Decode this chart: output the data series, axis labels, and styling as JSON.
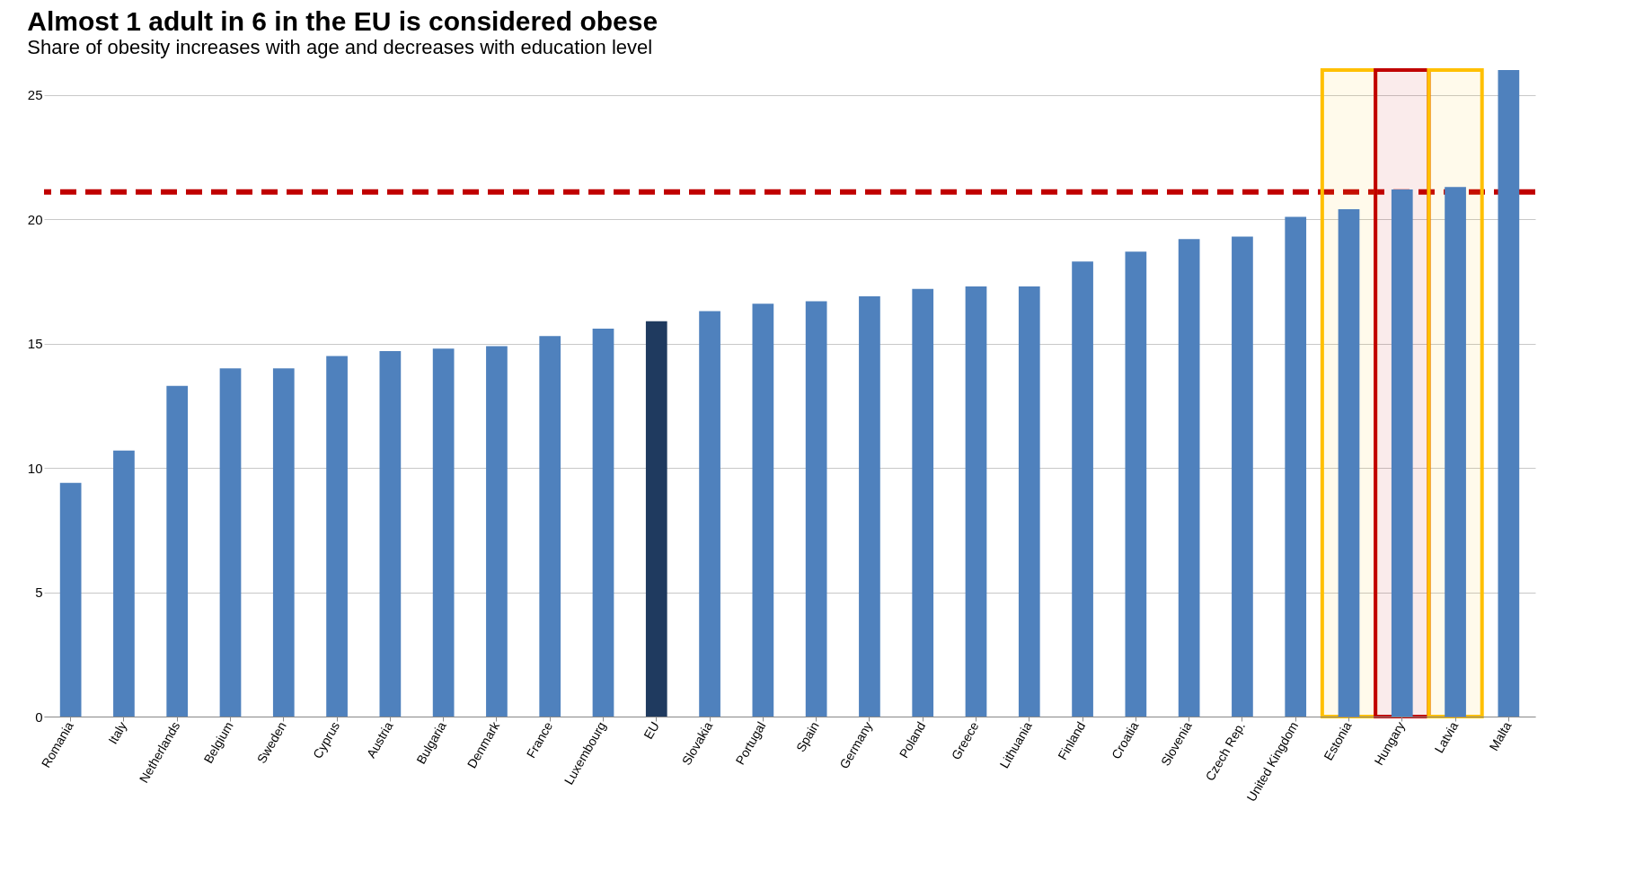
{
  "chart_data": {
    "type": "bar",
    "title": "Almost 1 adult in 6 in the EU is considered obese",
    "subtitle": "Share of obesity increases with age and decreases with education level",
    "categories": [
      "Romania",
      "Italy",
      "Netherlands",
      "Belgium",
      "Sweden",
      "Cyprus",
      "Austria",
      "Bulgaria",
      "Denmark",
      "France",
      "Luxembourg",
      "EU",
      "Slovakia",
      "Portugal",
      "Spain",
      "Germany",
      "Poland",
      "Greece",
      "Lithuania",
      "Finland",
      "Croatia",
      "Slovenia",
      "Czech Rep.",
      "United Kingdom",
      "Estonia",
      "Hungary",
      "Latvia",
      "Malta"
    ],
    "values": [
      9.4,
      10.7,
      13.3,
      14.0,
      14.0,
      14.5,
      14.7,
      14.8,
      14.9,
      15.3,
      15.6,
      15.9,
      16.3,
      16.6,
      16.7,
      16.9,
      17.2,
      17.3,
      17.3,
      18.3,
      18.7,
      19.2,
      19.3,
      20.1,
      20.4,
      21.2,
      21.3,
      26.0
    ],
    "colors": [
      "#4f81bd",
      "#4f81bd",
      "#4f81bd",
      "#4f81bd",
      "#4f81bd",
      "#4f81bd",
      "#4f81bd",
      "#4f81bd",
      "#4f81bd",
      "#4f81bd",
      "#4f81bd",
      "#1f3a5f",
      "#4f81bd",
      "#4f81bd",
      "#4f81bd",
      "#4f81bd",
      "#4f81bd",
      "#4f81bd",
      "#4f81bd",
      "#4f81bd",
      "#4f81bd",
      "#4f81bd",
      "#4f81bd",
      "#4f81bd",
      "#4f81bd",
      "#4f81bd",
      "#4f81bd",
      "#4f81bd"
    ],
    "ylim": [
      0,
      26
    ],
    "yticks": [
      0,
      5,
      10,
      15,
      20,
      25
    ],
    "grid": "y",
    "ref_lines": [
      {
        "axis": "y",
        "value": 21.1,
        "color": "#c00000",
        "line_style": "dashed"
      }
    ],
    "bands": [
      {
        "axis": "x",
        "from": "Estonia",
        "to": "Estonia",
        "color": "#ffc000"
      },
      {
        "axis": "x",
        "from": "Hungary",
        "to": "Hungary",
        "color": "#c00000"
      },
      {
        "axis": "x",
        "from": "Latvia",
        "to": "Latvia",
        "color": "#ffc000"
      }
    ]
  }
}
